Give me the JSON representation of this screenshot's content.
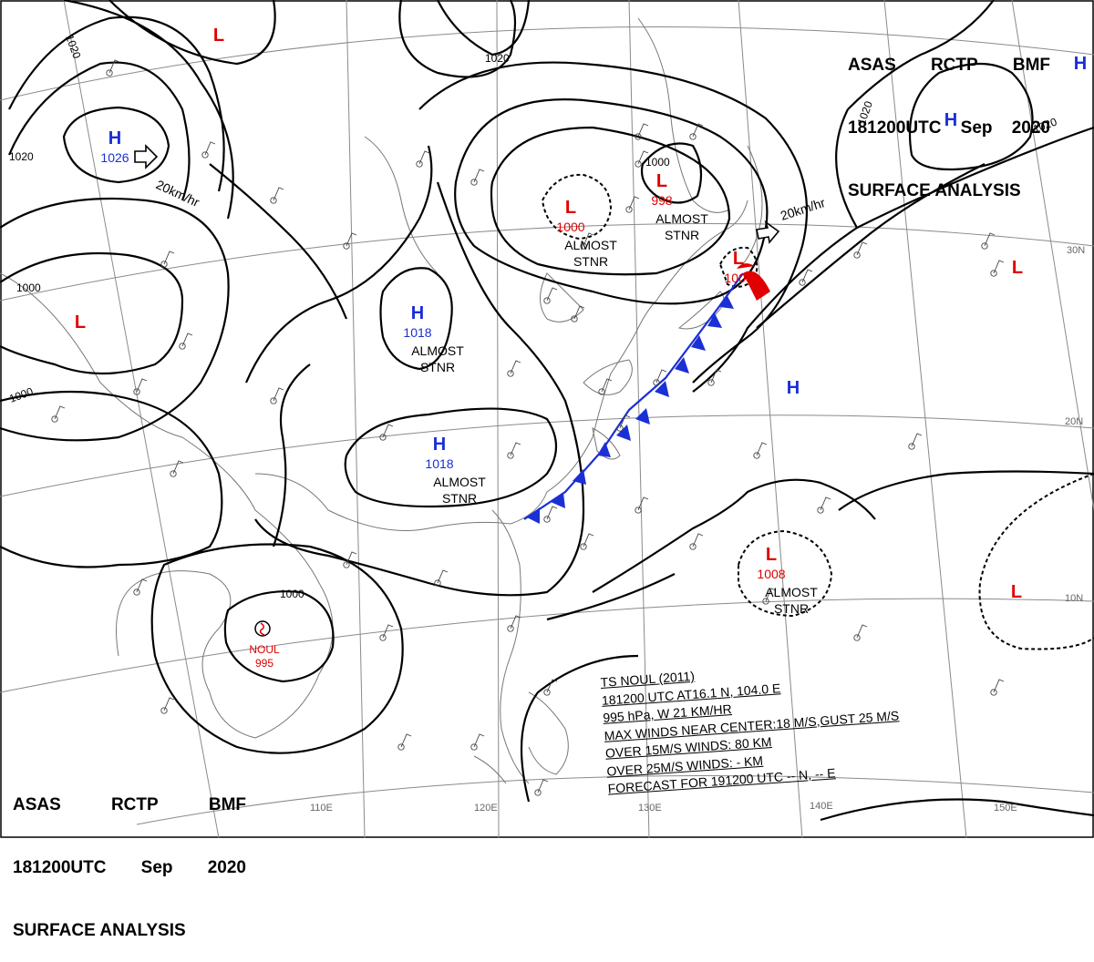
{
  "header": {
    "agency": "ASAS",
    "station": "RCTP",
    "code": "BMF",
    "datetime": "181200UTC",
    "month": "Sep",
    "year": "2020",
    "product": "SURFACE ANALYSIS"
  },
  "colors": {
    "high": "#1a2fd6",
    "low": "#e00000",
    "isobar": "#000000",
    "grid": "#888888",
    "coast": "#777777",
    "cold_front": "#1a2fd6",
    "warm_front": "#e00000"
  },
  "pressure_systems": [
    {
      "type": "H",
      "value": "1026"
    },
    {
      "type": "H",
      "value": ""
    },
    {
      "type": "H",
      "value": "1018",
      "note": "ALMOST STNR"
    },
    {
      "type": "H",
      "value": "1018",
      "note": "ALMOST STNR"
    },
    {
      "type": "H",
      "value": ""
    },
    {
      "type": "H",
      "value": ""
    },
    {
      "type": "L",
      "value": ""
    },
    {
      "type": "L",
      "value": ""
    },
    {
      "type": "L",
      "value": "1000",
      "note": "ALMOST STNR"
    },
    {
      "type": "L",
      "value": "998",
      "note": "ALMOST STNR"
    },
    {
      "type": "L",
      "value": "1000"
    },
    {
      "type": "L",
      "value": "1008",
      "note": "ALMOST STNR"
    },
    {
      "type": "L",
      "value": ""
    },
    {
      "type": "L",
      "value": ""
    }
  ],
  "isobar_labels": [
    "1020",
    "1020",
    "1020",
    "1020",
    "1020",
    "1000",
    "1000",
    "1000",
    "1000"
  ],
  "motion_labels": [
    "20km/hr",
    "20km/hr"
  ],
  "lat_labels": [
    "30N",
    "20N",
    "10N"
  ],
  "lon_labels": [
    "110E",
    "120E",
    "130E",
    "140E",
    "150E"
  ],
  "storm": {
    "name": "NOUL",
    "pressure": "995",
    "lines": [
      "TS  NOUL  (2011)",
      "181200 UTC  AT16.1 N, 104.0 E",
      "995 hPa, W  21 KM/HR",
      "MAX WINDS NEAR CENTER:18 M/S,GUST 25 M/S",
      "OVER 15M/S WINDS: 80 KM",
      "OVER 25M/S WINDS: - KM",
      "FORECAST FOR 191200 UTC -- N, -- E"
    ]
  }
}
